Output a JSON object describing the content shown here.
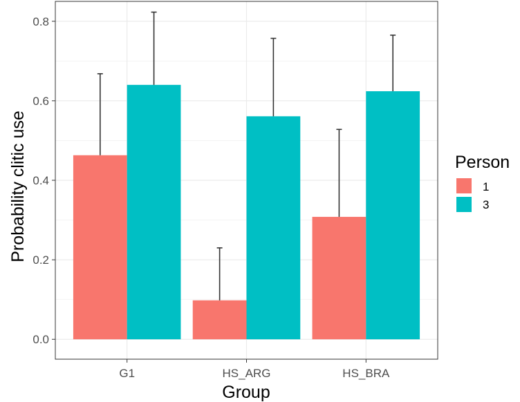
{
  "chart_data": {
    "type": "bar",
    "xlabel": "Group",
    "ylabel": "Probability clitic use",
    "categories": [
      "G1",
      "HS_ARG",
      "HS_BRA"
    ],
    "ylim": [
      -0.05,
      0.85
    ],
    "yticks": [
      0.0,
      0.2,
      0.4,
      0.6,
      0.8
    ],
    "ytick_labels": [
      "0.0",
      "0.2",
      "0.4",
      "0.6",
      "0.8"
    ],
    "grid": true,
    "legend": {
      "title": "Person",
      "position": "right"
    },
    "series": [
      {
        "name": "1",
        "color": "#F8766D",
        "values": [
          0.463,
          0.098,
          0.308
        ],
        "error_upper": [
          0.668,
          0.23,
          0.528
        ]
      },
      {
        "name": "3",
        "color": "#00BFC4",
        "values": [
          0.64,
          0.561,
          0.624
        ],
        "error_upper": [
          0.823,
          0.757,
          0.765
        ]
      }
    ]
  }
}
